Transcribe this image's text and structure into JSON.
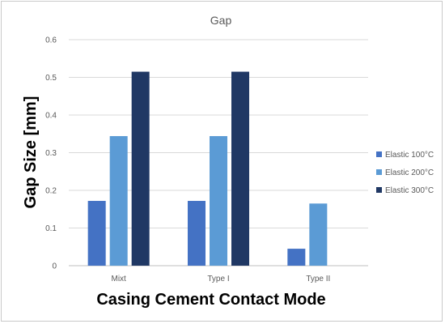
{
  "chart_data": {
    "type": "bar",
    "title": "Gap",
    "xlabel": "Casing Cement Contact Mode",
    "ylabel": "Gap Size [mm]",
    "categories": [
      "Mixt",
      "Type I",
      "Type II"
    ],
    "ylim": [
      0,
      0.6
    ],
    "yticks": [
      "0",
      "0.1",
      "0.2",
      "0.3",
      "0.4",
      "0.5",
      "0.6"
    ],
    "grid": true,
    "legend_position": "right",
    "series": [
      {
        "name": "Elastic 100°C",
        "color": "#4472C4",
        "values": [
          0.172,
          0.172,
          0.045
        ]
      },
      {
        "name": "Elastic 200°C",
        "color": "#5B9BD5",
        "values": [
          0.344,
          0.344,
          0.165
        ]
      },
      {
        "name": "Elastic 300°C",
        "color": "#203864",
        "values": [
          0.515,
          0.515,
          0.0
        ]
      }
    ]
  }
}
